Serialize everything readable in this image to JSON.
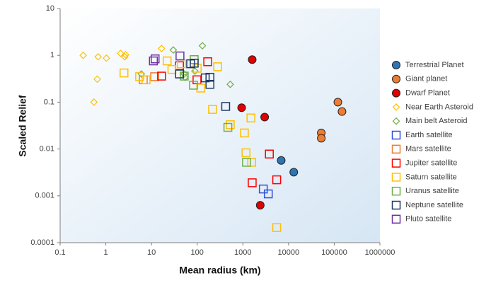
{
  "chart_data": {
    "type": "scatter",
    "x_label": "Mean radius (km)",
    "y_label": "Scaled Relief",
    "xscale": "log",
    "yscale": "log",
    "xlim": [
      0.1,
      1000000
    ],
    "ylim": [
      0.0001,
      10
    ],
    "xticks": [
      0.1,
      1,
      10,
      100,
      1000,
      10000,
      100000,
      1000000
    ],
    "yticks": [
      0.0001,
      0.001,
      0.01,
      0.1,
      1,
      10
    ],
    "legend": "right",
    "series": [
      {
        "name": "Terrestrial Planet",
        "color": "#2e75b6",
        "marker": "circle",
        "x": [
          6900,
          13000
        ],
        "values": [
          0.0057,
          0.0032
        ]
      },
      {
        "name": "Giant planet",
        "color": "#ed7d31",
        "marker": "circle",
        "x": [
          120000,
          148000,
          52000,
          52000
        ],
        "values": [
          0.1,
          0.063,
          0.022,
          0.017
        ]
      },
      {
        "name": "Dwarf Planet",
        "color": "#e00000",
        "marker": "circle",
        "x": [
          1600,
          940,
          3000,
          2400
        ],
        "values": [
          0.81,
          0.076,
          0.048,
          0.00063
        ]
      },
      {
        "name": "Near Earth Asteroid",
        "color": "#ffc000",
        "marker": "diamond",
        "x": [
          0.32,
          0.68,
          1.03,
          2.1,
          2.7,
          2.6,
          0.65,
          0.55,
          16.6
        ],
        "values": [
          1.0,
          0.93,
          0.87,
          1.1,
          1.03,
          0.93,
          0.31,
          0.1,
          1.4
        ]
      },
      {
        "name": "Main belt Asteroid",
        "color": "#70ad47",
        "marker": "diamond",
        "x": [
          30,
          130,
          530,
          6,
          52,
          89,
          54
        ],
        "values": [
          1.3,
          1.6,
          0.24,
          0.4,
          0.4,
          0.46,
          0.34
        ]
      },
      {
        "name": "Earth satellite",
        "color": "#2f4fd8",
        "marker": "square",
        "x": [
          2800,
          3600
        ],
        "values": [
          0.0014,
          0.0011
        ]
      },
      {
        "name": "Mars satellite",
        "color": "#ed7d31",
        "marker": "square",
        "x": [
          11.7,
          6.6
        ],
        "values": [
          0.35,
          0.3
        ]
      },
      {
        "name": "Jupiter satellite",
        "color": "#ff0000",
        "marker": "square",
        "x": [
          16.6,
          170,
          99,
          3800,
          5500,
          1600,
          41
        ],
        "values": [
          0.36,
          0.73,
          0.3,
          0.0078,
          0.0022,
          0.0019,
          0.6
        ]
      },
      {
        "name": "Saturn satellite",
        "color": "#ffc000",
        "marker": "square",
        "x": [
          2.5,
          5.5,
          7.6,
          22,
          28,
          100,
          120,
          280,
          217,
          530,
          1080,
          1500,
          1170,
          1560,
          5500,
          45
        ],
        "values": [
          0.42,
          0.35,
          0.3,
          0.76,
          0.5,
          0.53,
          0.2,
          0.57,
          0.07,
          0.033,
          0.022,
          0.046,
          0.0083,
          0.0052,
          0.00021,
          0.66
        ]
      },
      {
        "name": "Uranus satellite",
        "color": "#70ad47",
        "marker": "square",
        "x": [
          83,
          52,
          86,
          470,
          1200
        ],
        "values": [
          0.23,
          0.36,
          0.81,
          0.029,
          0.0052
        ]
      },
      {
        "name": "Neptune satellite",
        "color": "#203864",
        "marker": "square",
        "x": [
          72,
          86,
          41,
          150,
          190,
          190,
          420
        ],
        "values": [
          0.66,
          0.68,
          0.4,
          0.33,
          0.34,
          0.24,
          0.081
        ]
      },
      {
        "name": "Pluto satellite",
        "color": "#7030a0",
        "marker": "square",
        "x": [
          11,
          12,
          42
        ],
        "values": [
          0.76,
          0.84,
          0.97
        ]
      }
    ]
  }
}
